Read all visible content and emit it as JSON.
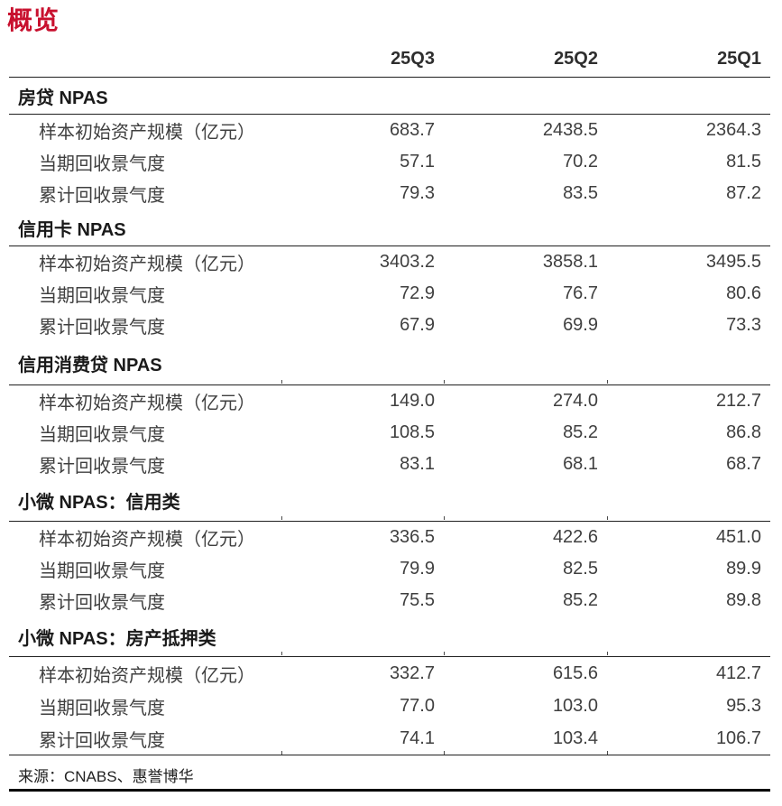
{
  "page": {
    "title": "概览",
    "accent_color": "#C8102E"
  },
  "table": {
    "columns": [
      "25Q3",
      "25Q2",
      "25Q1"
    ],
    "sections": [
      {
        "name": "房贷 NPAS",
        "rows": [
          {
            "label": "样本初始资产规模（亿元）",
            "values": [
              "683.7",
              "2438.5",
              "2364.3"
            ]
          },
          {
            "label": "当期回收景气度",
            "values": [
              "57.1",
              "70.2",
              "81.5"
            ]
          },
          {
            "label": "累计回收景气度",
            "values": [
              "79.3",
              "83.5",
              "87.2"
            ]
          }
        ]
      },
      {
        "name": "信用卡 NPAS",
        "rows": [
          {
            "label": "样本初始资产规模（亿元）",
            "values": [
              "3403.2",
              "3858.1",
              "3495.5"
            ]
          },
          {
            "label": "当期回收景气度",
            "values": [
              "72.9",
              "76.7",
              "80.6"
            ]
          },
          {
            "label": "累计回收景气度",
            "values": [
              "67.9",
              "69.9",
              "73.3"
            ]
          }
        ]
      },
      {
        "name": "信用消费贷 NPAS",
        "rows": [
          {
            "label": "样本初始资产规模（亿元）",
            "values": [
              "149.0",
              "274.0",
              "212.7"
            ]
          },
          {
            "label": "当期回收景气度",
            "values": [
              "108.5",
              "85.2",
              "86.8"
            ]
          },
          {
            "label": "累计回收景气度",
            "values": [
              "83.1",
              "68.1",
              "68.7"
            ]
          }
        ]
      },
      {
        "name": "小微 NPAS：信用类",
        "rows": [
          {
            "label": "样本初始资产规模（亿元）",
            "values": [
              "336.5",
              "422.6",
              "451.0"
            ]
          },
          {
            "label": "当期回收景气度",
            "values": [
              "79.9",
              "82.5",
              "89.9"
            ]
          },
          {
            "label": "累计回收景气度",
            "values": [
              "75.5",
              "85.2",
              "89.8"
            ]
          }
        ]
      },
      {
        "name": "小微 NPAS：房产抵押类",
        "rows": [
          {
            "label": "样本初始资产规模（亿元）",
            "values": [
              "332.7",
              "615.6",
              "412.7"
            ]
          },
          {
            "label": "当期回收景气度",
            "values": [
              "77.0",
              "103.0",
              "95.3"
            ]
          },
          {
            "label": "累计回收景气度",
            "values": [
              "74.1",
              "103.4",
              "106.7"
            ]
          }
        ]
      }
    ]
  },
  "footer": {
    "source": "来源：CNABS、惠誉博华"
  }
}
